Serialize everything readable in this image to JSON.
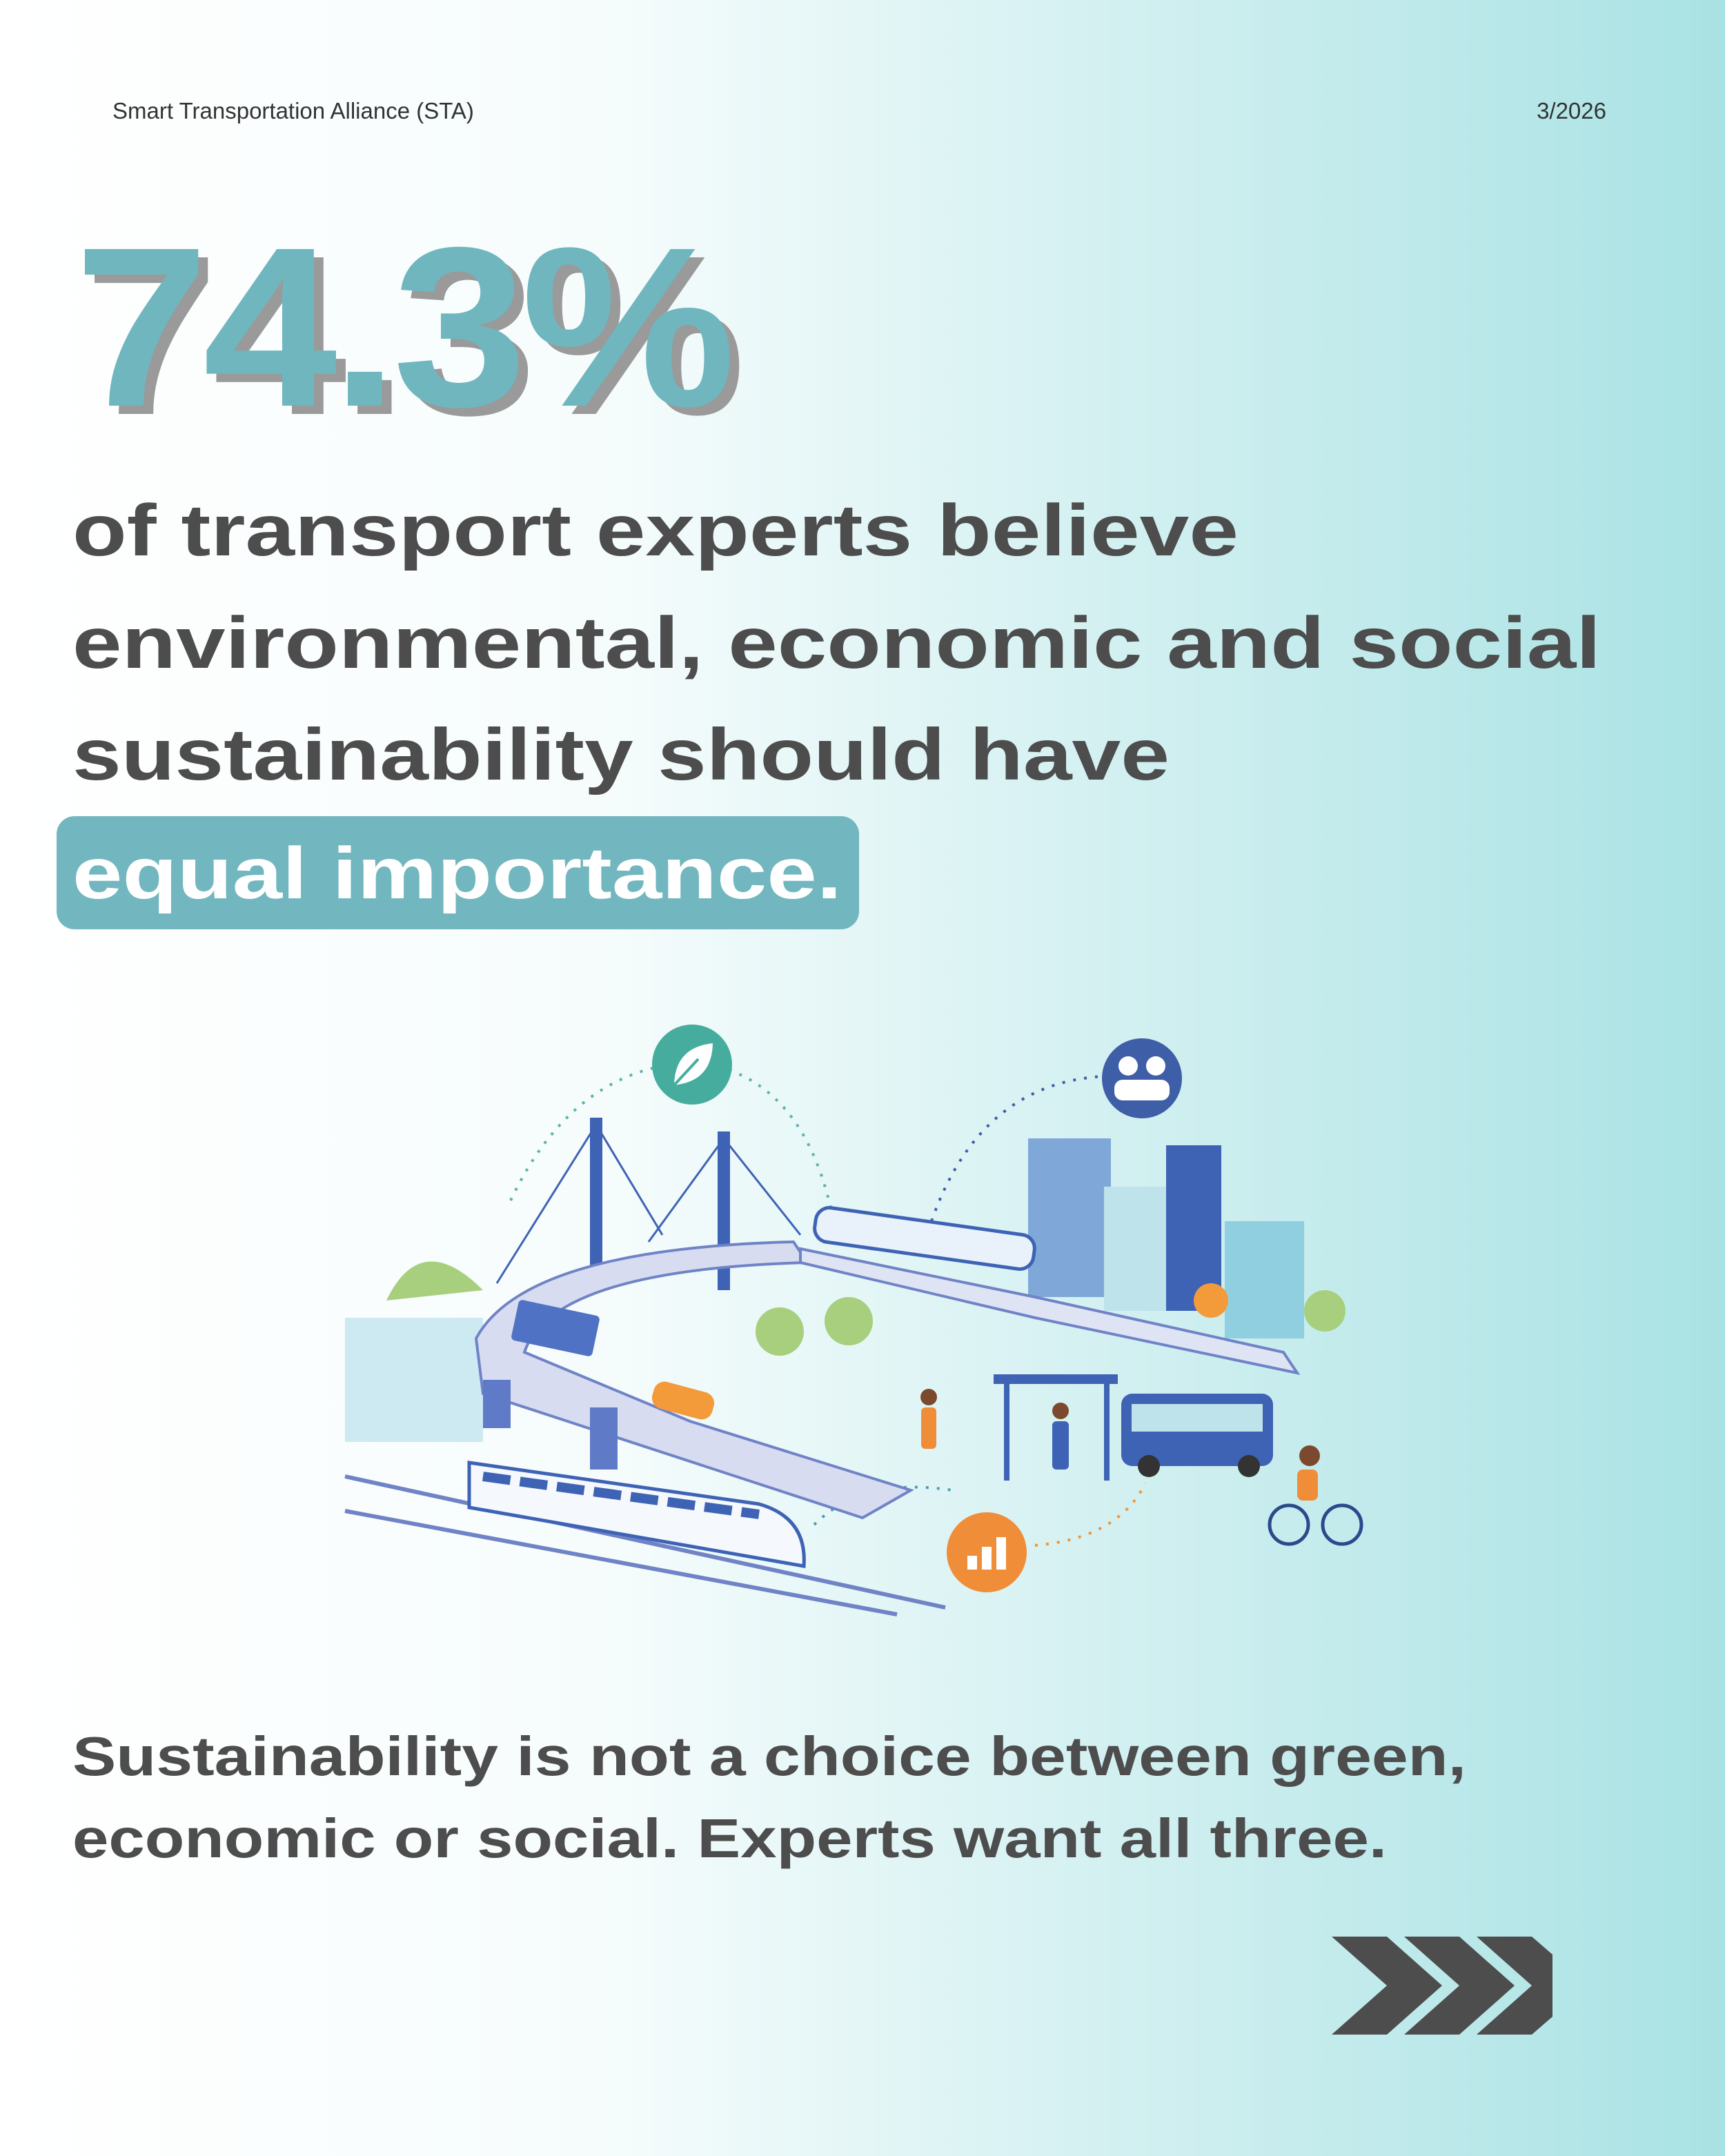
{
  "header": {
    "organization": "Smart Transportation Alliance (STA)",
    "date": "3/2026"
  },
  "stat": {
    "value": "74.3%"
  },
  "statement": {
    "lines": [
      "of transport experts believe",
      "environmental, economic and social",
      "sustainability should have"
    ],
    "highlight": "equal importance."
  },
  "footer": {
    "lines": [
      "Sustainability is not a choice between green,",
      "economic or social. Experts want all three."
    ]
  }
}
